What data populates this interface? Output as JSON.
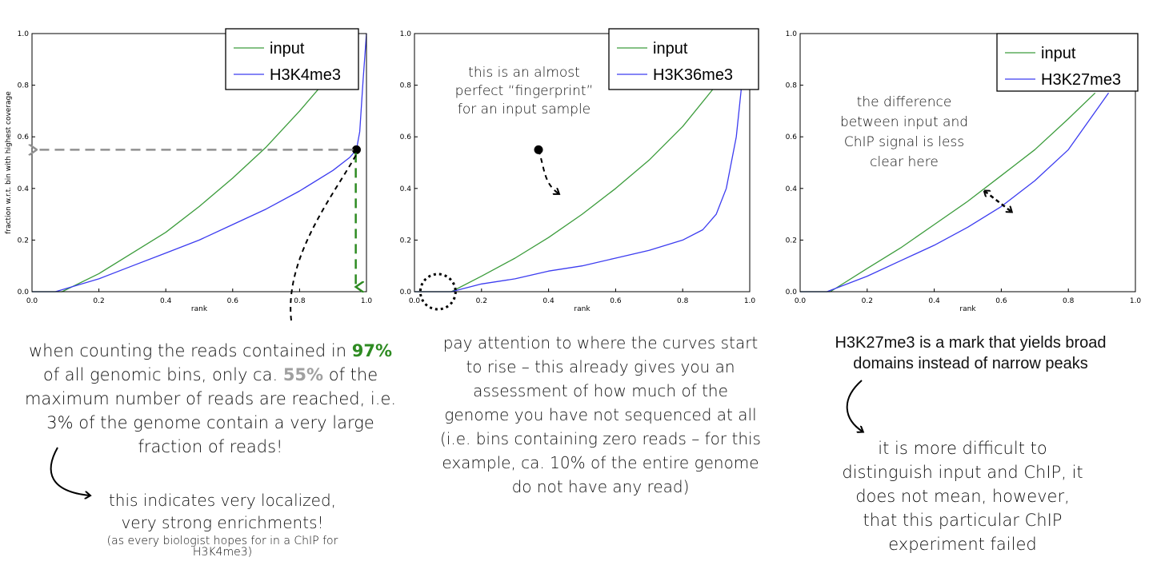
{
  "chart_data": [
    {
      "type": "line",
      "xlabel": "rank",
      "ylabel": "fraction w.r.t. bin with highest coverage",
      "xlim": [
        0.0,
        1.0
      ],
      "ylim": [
        0.0,
        1.0
      ],
      "xticks": [
        "0.0",
        "0.2",
        "0.4",
        "0.6",
        "0.8",
        "1.0"
      ],
      "yticks": [
        "0.0",
        "0.2",
        "0.4",
        "0.6",
        "0.8",
        "1.0"
      ],
      "legend_position": "top-right",
      "grid": false,
      "series": [
        {
          "name": "input",
          "color": "#3c9c3c",
          "x": [
            0.0,
            0.09,
            0.2,
            0.3,
            0.4,
            0.5,
            0.6,
            0.7,
            0.8,
            0.88
          ],
          "y": [
            0.0,
            0.0,
            0.07,
            0.15,
            0.23,
            0.33,
            0.44,
            0.56,
            0.7,
            0.82
          ]
        },
        {
          "name": "H3K4me3",
          "color": "#3c3cf0",
          "x": [
            0.0,
            0.07,
            0.2,
            0.3,
            0.4,
            0.5,
            0.6,
            0.7,
            0.8,
            0.9,
            0.95,
            0.97,
            0.98,
            0.99,
            1.0
          ],
          "y": [
            0.0,
            0.0,
            0.05,
            0.1,
            0.15,
            0.2,
            0.26,
            0.32,
            0.39,
            0.47,
            0.52,
            0.55,
            0.62,
            0.82,
            1.0
          ]
        }
      ],
      "annotations": [
        {
          "type": "point",
          "x": 0.97,
          "y": 0.55
        },
        {
          "type": "dashed-arrow",
          "to": "y-axis",
          "y": 0.55,
          "color": "#909090"
        },
        {
          "type": "dashed-arrow",
          "to": "x-axis",
          "x": 0.98,
          "color": "#2e8b22"
        }
      ]
    },
    {
      "type": "line",
      "xlabel": "rank",
      "ylabel": "",
      "xlim": [
        0.0,
        1.0
      ],
      "ylim": [
        0.0,
        1.0
      ],
      "xticks": [
        "0.0",
        "0.2",
        "0.4",
        "0.6",
        "0.8",
        "1.0"
      ],
      "yticks": [
        "0.0",
        "0.2",
        "0.4",
        "0.6",
        "0.8",
        "1.0"
      ],
      "legend_position": "top-right",
      "grid": false,
      "series": [
        {
          "name": "input",
          "color": "#3c9c3c",
          "x": [
            0.0,
            0.11,
            0.2,
            0.3,
            0.4,
            0.5,
            0.6,
            0.7,
            0.8,
            0.9,
            0.95
          ],
          "y": [
            0.0,
            0.0,
            0.06,
            0.13,
            0.21,
            0.3,
            0.4,
            0.51,
            0.64,
            0.8,
            0.88
          ]
        },
        {
          "name": "H3K36me3",
          "color": "#3c3cf0",
          "x": [
            0.0,
            0.11,
            0.2,
            0.3,
            0.4,
            0.5,
            0.6,
            0.7,
            0.8,
            0.86,
            0.9,
            0.93,
            0.96,
            0.98
          ],
          "y": [
            0.0,
            0.0,
            0.03,
            0.05,
            0.08,
            0.1,
            0.13,
            0.16,
            0.2,
            0.24,
            0.3,
            0.4,
            0.6,
            0.85
          ]
        }
      ],
      "annotations": [
        {
          "type": "dotted-circle",
          "x": 0.07,
          "y": 0.0
        },
        {
          "type": "point",
          "x": 0.37,
          "y": 0.55
        },
        {
          "type": "dashed-arrow",
          "x": 0.43,
          "y": 0.38
        }
      ]
    },
    {
      "type": "line",
      "xlabel": "rank",
      "ylabel": "",
      "xlim": [
        0.0,
        1.0
      ],
      "ylim": [
        0.0,
        1.0
      ],
      "xticks": [
        "0.0",
        "0.2",
        "0.4",
        "0.6",
        "0.8",
        "1.0"
      ],
      "yticks": [
        "0.0",
        "0.2",
        "0.4",
        "0.6",
        "0.8",
        "1.0"
      ],
      "legend_position": "top-right",
      "grid": false,
      "series": [
        {
          "name": "input",
          "color": "#3c9c3c",
          "x": [
            0.0,
            0.09,
            0.2,
            0.3,
            0.4,
            0.5,
            0.6,
            0.7,
            0.8,
            0.88
          ],
          "y": [
            0.0,
            0.0,
            0.09,
            0.17,
            0.26,
            0.35,
            0.45,
            0.55,
            0.67,
            0.77
          ]
        },
        {
          "name": "H3K27me3",
          "color": "#3c3cf0",
          "x": [
            0.0,
            0.08,
            0.2,
            0.3,
            0.4,
            0.5,
            0.6,
            0.7,
            0.8,
            0.92
          ],
          "y": [
            0.0,
            0.0,
            0.06,
            0.12,
            0.18,
            0.25,
            0.33,
            0.43,
            0.55,
            0.77
          ]
        }
      ],
      "annotations": [
        {
          "type": "double-arrow",
          "from": [
            0.55,
            0.39
          ],
          "to": [
            0.63,
            0.31
          ]
        }
      ]
    }
  ],
  "notes": {
    "c1_caption_part1": "when counting the reads contained in ",
    "c1_caption_pct97": "97%",
    "c1_caption_part2": " of all genomic bins, only ca. ",
    "c1_caption_pct55": "55%",
    "c1_caption_part3": " of the maximum number of reads are reached, i.e. 3% of the genome contain a very large fraction of reads!",
    "c1_arrow_note": "this indicates very localized, very strong enrichments!",
    "c1_small_note": "(as every biologist hopes for in a ChIP for H3K4me3)",
    "c2_chart_note": "this is an almost perfect “fingerprint” for an input sample",
    "c2_caption": "pay attention to where the curves start to rise – this already gives you an assessment of how much of the genome you have not sequenced at all (i.e. bins containing zero reads – for this example, ca. 10% of the entire genome do not have any read)",
    "c3_chart_note": "the difference between input and ChIP signal is less clear here",
    "c3_caption": "H3K27me3 is a mark that yields broad domains instead of narrow peaks",
    "c3_arrow_note": "it is more difficult to distinguish input and ChIP, it does not mean, however, that this particular ChIP experiment failed"
  }
}
